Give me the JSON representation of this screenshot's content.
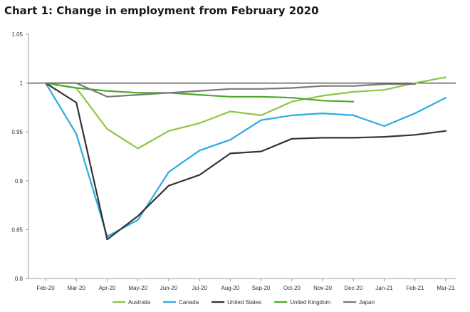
{
  "chart_data": {
    "type": "line",
    "title": "Chart 1: Change in employment from February 2020",
    "xlabel": "",
    "ylabel": "",
    "ylim": [
      0.8,
      1.05
    ],
    "yticks": [
      0.8,
      0.85,
      0.9,
      0.95,
      1,
      1.05
    ],
    "ytick_labels": [
      "0.8",
      "0.85",
      "0.9",
      "0.95",
      "1",
      "1.05"
    ],
    "categories": [
      "Feb-20",
      "Mar-20",
      "Apr-20",
      "May-20",
      "Jun-20",
      "Jul-20",
      "Aug-20",
      "Sep-20",
      "Oct-20",
      "Nov-20",
      "Dec-20",
      "Jan-21",
      "Feb-21",
      "Mar-21"
    ],
    "grid": false,
    "reference_line": 1,
    "legend_position": "bottom",
    "series": [
      {
        "name": "Australia",
        "color": "#8dc63f",
        "values": [
          1.0,
          0.995,
          0.953,
          0.933,
          0.951,
          0.959,
          0.971,
          0.967,
          0.981,
          0.987,
          0.991,
          0.993,
          1.0,
          1.006
        ]
      },
      {
        "name": "Canada",
        "color": "#29abe2",
        "values": [
          1.0,
          0.948,
          0.843,
          0.86,
          0.909,
          0.931,
          0.942,
          0.962,
          0.967,
          0.969,
          0.967,
          0.956,
          0.969,
          0.985
        ]
      },
      {
        "name": "United States",
        "color": "#333333",
        "values": [
          1.0,
          0.98,
          0.84,
          0.864,
          0.895,
          0.906,
          0.928,
          0.93,
          0.943,
          0.944,
          0.944,
          0.945,
          0.947,
          0.951
        ]
      },
      {
        "name": "United Kingdom",
        "color": "#4ea72e",
        "values": [
          1.0,
          0.995,
          0.992,
          0.99,
          0.99,
          0.988,
          0.986,
          0.986,
          0.985,
          0.982,
          0.981,
          null,
          null,
          null
        ]
      },
      {
        "name": "Japan",
        "color": "#7a7a7a",
        "values": [
          1.0,
          1.0,
          0.986,
          0.988,
          0.99,
          0.992,
          0.994,
          0.994,
          0.995,
          0.997,
          0.997,
          0.999,
          0.999,
          null
        ]
      }
    ]
  }
}
